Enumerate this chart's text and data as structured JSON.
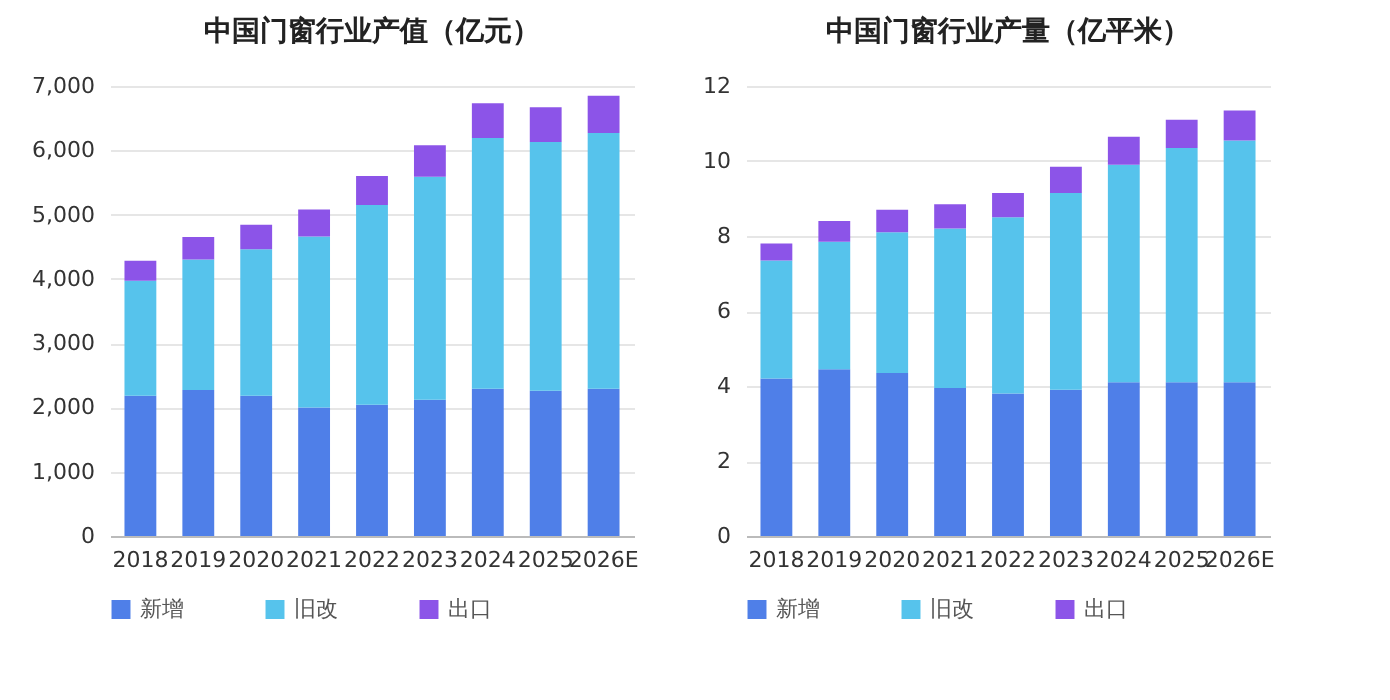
{
  "chart_data": [
    {
      "type": "bar",
      "title": "中国门窗行业产值（亿元）",
      "stacked": true,
      "categories": [
        "2018",
        "2019",
        "2020",
        "2021",
        "2022",
        "2023",
        "2024",
        "2025",
        "2026E"
      ],
      "series": [
        {
          "name": "新增",
          "color": "#4f7fe8",
          "values": [
            2180,
            2270,
            2180,
            2000,
            2040,
            2120,
            2290,
            2260,
            2290
          ]
        },
        {
          "name": "旧改",
          "color": "#56c3ec",
          "values": [
            1790,
            2030,
            2280,
            2660,
            3110,
            3470,
            3900,
            3870,
            3980
          ]
        },
        {
          "name": "出口",
          "color": "#8c54e8",
          "values": [
            310,
            350,
            380,
            420,
            450,
            490,
            540,
            540,
            580
          ]
        }
      ],
      "ylim": [
        0,
        7000
      ],
      "yticks": [
        {
          "value": 0,
          "label": "0"
        },
        {
          "value": 1000,
          "label": "1,000"
        },
        {
          "value": 2000,
          "label": "2,000"
        },
        {
          "value": 3000,
          "label": "3,000"
        },
        {
          "value": 4000,
          "label": "4,000"
        },
        {
          "value": 5000,
          "label": "5,000"
        },
        {
          "value": 6000,
          "label": "6,000"
        },
        {
          "value": 7000,
          "label": "7,000"
        }
      ],
      "grid": "y",
      "legend": "bottom"
    },
    {
      "type": "bar",
      "title": "中国门窗行业产量（亿平米）",
      "stacked": true,
      "categories": [
        "2018",
        "2019",
        "2020",
        "2021",
        "2022",
        "2023",
        "2024",
        "2025",
        "2026E"
      ],
      "series": [
        {
          "name": "新增",
          "color": "#4f7fe8",
          "values": [
            4.2,
            4.45,
            4.35,
            3.95,
            3.8,
            3.9,
            4.1,
            4.1,
            4.1
          ]
        },
        {
          "name": "旧改",
          "color": "#56c3ec",
          "values": [
            3.15,
            3.4,
            3.75,
            4.25,
            4.7,
            5.25,
            5.8,
            6.25,
            6.45
          ]
        },
        {
          "name": "出口",
          "color": "#8c54e8",
          "values": [
            0.45,
            0.55,
            0.6,
            0.65,
            0.65,
            0.7,
            0.75,
            0.75,
            0.8
          ]
        }
      ],
      "ylim": [
        0,
        12
      ],
      "yticks": [
        0,
        2,
        4,
        6,
        8,
        10,
        12
      ],
      "grid": "y",
      "legend": "bottom"
    }
  ]
}
